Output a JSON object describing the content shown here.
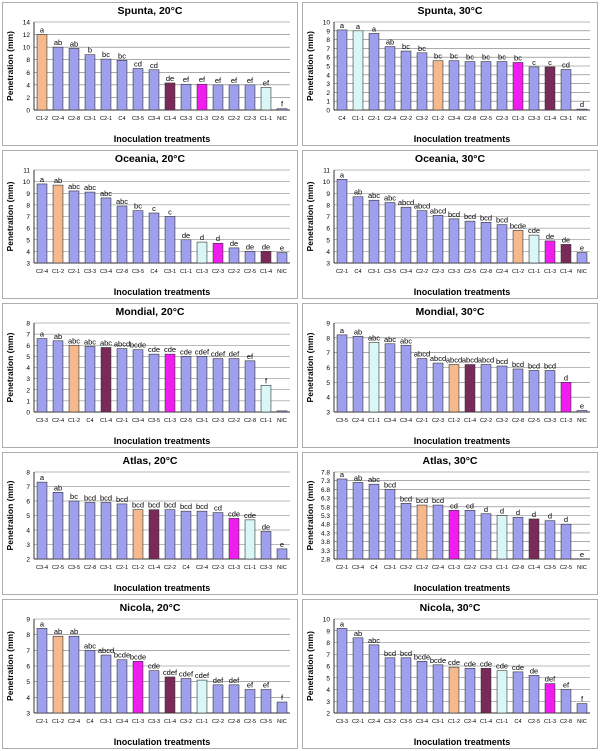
{
  "chart_data": [
    {
      "type": "bar",
      "title": "Spunta, 20°C",
      "xlabel": "Inoculation treatments",
      "ylabel": "Penetration (mm)",
      "ylim": [
        0,
        14
      ],
      "yticks": [
        0,
        2,
        4,
        6,
        8,
        10,
        12,
        14
      ],
      "categories": [
        "C1-2",
        "C2-4",
        "C2-8",
        "C3-1",
        "C2-1",
        "C4",
        "C3-5",
        "C3-4",
        "C1-4",
        "C3-3",
        "C1-3",
        "C2-5",
        "C2-2",
        "C2-3",
        "C1-1",
        "NIC"
      ],
      "values": [
        12,
        10,
        9.8,
        8.8,
        8.1,
        7.9,
        6.6,
        6.4,
        4.3,
        4.1,
        4.1,
        4.0,
        4.0,
        4.0,
        3.6,
        0.2
      ],
      "letters": [
        "a",
        "ab",
        "ab",
        "b",
        "bc",
        "bc",
        "cd",
        "cd",
        "de",
        "ef",
        "ef",
        "ef",
        "ef",
        "ef",
        "ef",
        "f"
      ],
      "colors": [
        "#f6b98e",
        "#9f9ff0",
        "#9f9ff0",
        "#9f9ff0",
        "#9f9ff0",
        "#9f9ff0",
        "#9f9ff0",
        "#9f9ff0",
        "#7a2a58",
        "#9f9ff0",
        "#f01cf0",
        "#9f9ff0",
        "#9f9ff0",
        "#9f9ff0",
        "#d9f7f7",
        "#9f9ff0"
      ]
    },
    {
      "type": "bar",
      "title": "Spunta, 30°C",
      "xlabel": "Inoculation treatments",
      "ylabel": "Penetration (mm)",
      "ylim": [
        0,
        10
      ],
      "yticks": [
        0,
        1,
        2,
        3,
        4,
        5,
        6,
        7,
        8,
        9,
        10
      ],
      "categories": [
        "C4",
        "C1-1",
        "C2-1",
        "C2-4",
        "C2-2",
        "C3-2",
        "C1-2",
        "C3-4",
        "C2-8",
        "C2-5",
        "C2-3",
        "C1-3",
        "C3-3",
        "C1-4",
        "C3-1",
        "NIC"
      ],
      "values": [
        9.1,
        9.0,
        8.7,
        7.2,
        6.7,
        6.5,
        5.6,
        5.6,
        5.5,
        5.5,
        5.5,
        5.4,
        4.9,
        4.9,
        4.6,
        0.1
      ],
      "letters": [
        "a",
        "a",
        "a",
        "ab",
        "bc",
        "bc",
        "bc",
        "bc",
        "bc",
        "bc",
        "bc",
        "bc",
        "c",
        "c",
        "cd",
        "d"
      ],
      "colors": [
        "#9f9ff0",
        "#d9f7f7",
        "#9f9ff0",
        "#9f9ff0",
        "#9f9ff0",
        "#9f9ff0",
        "#f6b98e",
        "#9f9ff0",
        "#9f9ff0",
        "#9f9ff0",
        "#9f9ff0",
        "#f01cf0",
        "#9f9ff0",
        "#7a2a58",
        "#9f9ff0",
        "#9f9ff0"
      ]
    },
    {
      "type": "bar",
      "title": "Oceania, 20°C",
      "xlabel": "Inoculation treatments",
      "ylabel": "Penetration (mm)",
      "ylim": [
        3,
        11
      ],
      "yticks": [
        3,
        4,
        5,
        6,
        7,
        8,
        9,
        10,
        11
      ],
      "categories": [
        "C2-4",
        "C1-2",
        "C2-1",
        "C3-3",
        "C3-4",
        "C2-8",
        "C3-5",
        "C4",
        "C3-1",
        "C1-1",
        "C1-3",
        "C2-3",
        "C2-2",
        "C2-5",
        "C1-4",
        "NIC"
      ],
      "values": [
        9.8,
        9.7,
        9.2,
        9.1,
        8.6,
        7.9,
        7.5,
        7.3,
        7.0,
        5.0,
        4.8,
        4.7,
        4.3,
        4.0,
        4.0,
        3.9
      ],
      "letters": [
        "a",
        "ab",
        "abc",
        "abc",
        "abc",
        "abc",
        "bc",
        "c",
        "c",
        "de",
        "d",
        "d",
        "de",
        "de",
        "de",
        "e"
      ],
      "colors": [
        "#9f9ff0",
        "#f6b98e",
        "#9f9ff0",
        "#9f9ff0",
        "#9f9ff0",
        "#9f9ff0",
        "#9f9ff0",
        "#9f9ff0",
        "#9f9ff0",
        "#9f9ff0",
        "#d9f7f7",
        "#f01cf0",
        "#9f9ff0",
        "#9f9ff0",
        "#7a2a58",
        "#9f9ff0"
      ]
    },
    {
      "type": "bar",
      "title": "Oceania, 30°C",
      "xlabel": "Inoculation treatments",
      "ylabel": "Penetration (mm)",
      "ylim": [
        3,
        11
      ],
      "yticks": [
        3,
        4,
        5,
        6,
        7,
        8,
        9,
        10,
        11
      ],
      "categories": [
        "C2-1",
        "C4",
        "C3-1",
        "C3-5",
        "C3-4",
        "C2-2",
        "C2-3",
        "C3-3",
        "C2-5",
        "C2-8",
        "C2-4",
        "C1-2",
        "C1-1",
        "C1-3",
        "C1-4",
        "NIC"
      ],
      "values": [
        10.2,
        8.7,
        8.4,
        8.2,
        7.8,
        7.5,
        7.1,
        6.8,
        6.6,
        6.5,
        6.3,
        5.8,
        5.4,
        4.9,
        4.6,
        3.9
      ],
      "letters": [
        "a",
        "ab",
        "abc",
        "abc",
        "abcd",
        "abcd",
        "abcd",
        "bcd",
        "bcd",
        "bcd",
        "bcd",
        "bcde",
        "cde",
        "de",
        "de",
        "e"
      ],
      "colors": [
        "#9f9ff0",
        "#9f9ff0",
        "#9f9ff0",
        "#9f9ff0",
        "#9f9ff0",
        "#9f9ff0",
        "#9f9ff0",
        "#9f9ff0",
        "#9f9ff0",
        "#9f9ff0",
        "#9f9ff0",
        "#f6b98e",
        "#d9f7f7",
        "#f01cf0",
        "#7a2a58",
        "#9f9ff0"
      ]
    },
    {
      "type": "bar",
      "title": "Mondial, 20°C",
      "xlabel": "Inoculation treatments",
      "ylabel": "Penetration (mm)",
      "ylim": [
        0,
        8
      ],
      "yticks": [
        0,
        1,
        2,
        3,
        4,
        5,
        6,
        7,
        8
      ],
      "categories": [
        "C3-3",
        "C2-4",
        "C1-2",
        "C4",
        "C1-4",
        "C2-1",
        "C3-4",
        "C3-5",
        "C1-3",
        "C2-5",
        "C3-1",
        "C2-3",
        "C2-2",
        "C2-8",
        "C1-1",
        "NIC"
      ],
      "values": [
        6.6,
        6.4,
        6.0,
        5.9,
        5.8,
        5.7,
        5.6,
        5.2,
        5.2,
        5.0,
        5.0,
        4.8,
        4.8,
        4.6,
        2.4,
        0.1
      ],
      "letters": [
        "a",
        "ab",
        "abc",
        "abc",
        "abc",
        "abcd",
        "bcde",
        "cde",
        "cde",
        "cde",
        "cdef",
        "cdef",
        "def",
        "ef",
        "f",
        ""
      ],
      "colors": [
        "#9f9ff0",
        "#9f9ff0",
        "#f6b98e",
        "#9f9ff0",
        "#7a2a58",
        "#9f9ff0",
        "#9f9ff0",
        "#9f9ff0",
        "#f01cf0",
        "#9f9ff0",
        "#9f9ff0",
        "#9f9ff0",
        "#9f9ff0",
        "#9f9ff0",
        "#d9f7f7",
        "#9f9ff0"
      ]
    },
    {
      "type": "bar",
      "title": "Mondial, 30°C",
      "xlabel": "Inoculation treatments",
      "ylabel": "Penetration (mm)",
      "ylim": [
        3,
        9
      ],
      "yticks": [
        3,
        4,
        5,
        6,
        7,
        8,
        9
      ],
      "categories": [
        "C3-5",
        "C2-4",
        "C1-1",
        "C3-4",
        "C3-4",
        "C2-1",
        "C2-3",
        "C1-2",
        "C1-4",
        "C2-2",
        "C3-2",
        "C2-8",
        "C2-5",
        "C3-3",
        "C1-3",
        "NIC"
      ],
      "values": [
        8.2,
        8.1,
        7.7,
        7.6,
        7.5,
        6.6,
        6.3,
        6.2,
        6.2,
        6.2,
        6.1,
        5.9,
        5.8,
        5.8,
        5.0,
        3.1
      ],
      "letters": [
        "a",
        "ab",
        "abc",
        "abc",
        "abc",
        "abcd",
        "abcd",
        "abcd",
        "abcd",
        "abcd",
        "bcd",
        "bcd",
        "bcd",
        "bcd",
        "d",
        "e"
      ],
      "colors": [
        "#9f9ff0",
        "#9f9ff0",
        "#d9f7f7",
        "#9f9ff0",
        "#9f9ff0",
        "#9f9ff0",
        "#9f9ff0",
        "#f6b98e",
        "#7a2a58",
        "#9f9ff0",
        "#9f9ff0",
        "#9f9ff0",
        "#9f9ff0",
        "#9f9ff0",
        "#f01cf0",
        "#9f9ff0"
      ]
    },
    {
      "type": "bar",
      "title": "Atlas, 20°C",
      "xlabel": "Inoculation treatments",
      "ylabel": "Penetration (mm)",
      "ylim": [
        2,
        8
      ],
      "yticks": [
        2,
        3,
        4,
        5,
        6,
        7,
        8
      ],
      "categories": [
        "C3-4",
        "C2-5",
        "C3-5",
        "C2-8",
        "C3-1",
        "C2-1",
        "C1-2",
        "C1-4",
        "C2-2",
        "C4",
        "C2-4",
        "C2-3",
        "C1-3",
        "C1-1",
        "C3-3",
        "NIC"
      ],
      "values": [
        7.3,
        6.6,
        6.0,
        5.9,
        5.9,
        5.8,
        5.4,
        5.4,
        5.4,
        5.3,
        5.3,
        5.2,
        4.8,
        4.7,
        3.9,
        2.7
      ],
      "letters": [
        "a",
        "ab",
        "bc",
        "bcd",
        "bcd",
        "bcd",
        "bcd",
        "bcd",
        "bcd",
        "bcd",
        "bcd",
        "cd",
        "cde",
        "cde",
        "de",
        "e"
      ],
      "colors": [
        "#9f9ff0",
        "#9f9ff0",
        "#9f9ff0",
        "#9f9ff0",
        "#9f9ff0",
        "#9f9ff0",
        "#f6b98e",
        "#7a2a58",
        "#9f9ff0",
        "#9f9ff0",
        "#9f9ff0",
        "#9f9ff0",
        "#f01cf0",
        "#d9f7f7",
        "#9f9ff0",
        "#9f9ff0"
      ]
    },
    {
      "type": "bar",
      "title": "Atlas, 30°C",
      "xlabel": "Inoculation treatments",
      "ylabel": "Penetration (mm)",
      "ylim": [
        2.8,
        7.8
      ],
      "yticks": [
        2.8,
        3.3,
        3.8,
        4.3,
        4.8,
        5.3,
        5.8,
        6.3,
        6.8,
        7.3,
        7.8
      ],
      "categories": [
        "C2-1",
        "C3-4",
        "C4",
        "C3-1",
        "C3-2",
        "C1-2",
        "C2-4",
        "C1-3",
        "C2-2",
        "C3-3",
        "C1-1",
        "C2-8",
        "C1-4",
        "C3-5",
        "C2-5",
        "NIC"
      ],
      "values": [
        7.4,
        7.2,
        7.1,
        6.8,
        6.0,
        5.9,
        5.9,
        5.6,
        5.6,
        5.4,
        5.3,
        5.2,
        5.1,
        5.0,
        4.8,
        2.8
      ],
      "letters": [
        "a",
        "ab",
        "abc",
        "bcd",
        "bcd",
        "bcd",
        "bcd",
        "cd",
        "cd",
        "d",
        "d",
        "d",
        "d",
        "d",
        "d",
        "e"
      ],
      "colors": [
        "#9f9ff0",
        "#9f9ff0",
        "#9f9ff0",
        "#9f9ff0",
        "#9f9ff0",
        "#f6b98e",
        "#9f9ff0",
        "#f01cf0",
        "#9f9ff0",
        "#9f9ff0",
        "#d9f7f7",
        "#9f9ff0",
        "#7a2a58",
        "#9f9ff0",
        "#9f9ff0",
        "#9f9ff0"
      ]
    },
    {
      "type": "bar",
      "title": "Nicola, 20°C",
      "xlabel": "Inoculation treatments",
      "ylabel": "Penetration (mm)",
      "ylim": [
        3,
        9
      ],
      "yticks": [
        3,
        4,
        5,
        6,
        7,
        8,
        9
      ],
      "categories": [
        "C2-1",
        "C1-2",
        "C2-4",
        "C4",
        "C3-1",
        "C3-4",
        "C1-3",
        "C3-3",
        "C1-4",
        "C3-2",
        "C1-1",
        "C2-2",
        "C2-8",
        "C2-5",
        "C3-5",
        "NIC"
      ],
      "values": [
        8.4,
        7.9,
        7.9,
        7.0,
        6.7,
        6.4,
        6.3,
        5.7,
        5.3,
        5.2,
        5.1,
        4.8,
        4.8,
        4.5,
        4.5,
        3.7
      ],
      "letters": [
        "a",
        "ab",
        "ab",
        "abc",
        "abcd",
        "bcde",
        "bcde",
        "cde",
        "cdef",
        "cdef",
        "cdef",
        "def",
        "def",
        "ef",
        "ef",
        "f"
      ],
      "colors": [
        "#9f9ff0",
        "#f6b98e",
        "#9f9ff0",
        "#9f9ff0",
        "#9f9ff0",
        "#9f9ff0",
        "#f01cf0",
        "#9f9ff0",
        "#7a2a58",
        "#9f9ff0",
        "#d9f7f7",
        "#9f9ff0",
        "#9f9ff0",
        "#9f9ff0",
        "#9f9ff0",
        "#9f9ff0"
      ]
    },
    {
      "type": "bar",
      "title": "Nicola, 30°C",
      "xlabel": "Inoculation treatments",
      "ylabel": "Penetration (mm)",
      "ylim": [
        2,
        10
      ],
      "yticks": [
        2,
        3,
        4,
        5,
        6,
        7,
        8,
        9,
        10
      ],
      "categories": [
        "C3-3",
        "C2-1",
        "C2-4",
        "C3-2",
        "C3-5",
        "C3-4",
        "C3-1",
        "C1-2",
        "C2-4",
        "C1-4",
        "C1-1",
        "C4",
        "C2-5",
        "C1-3",
        "C2-8",
        "NIC"
      ],
      "values": [
        9.2,
        8.4,
        7.8,
        6.7,
        6.7,
        6.4,
        6.1,
        5.9,
        5.8,
        5.8,
        5.6,
        5.5,
        5.2,
        4.5,
        4.0,
        2.8
      ],
      "letters": [
        "a",
        "ab",
        "abc",
        "bcd",
        "bcd",
        "bcde",
        "bcde",
        "cde",
        "cde",
        "cde",
        "cde",
        "cde",
        "de",
        "def",
        "ef",
        "f"
      ],
      "colors": [
        "#9f9ff0",
        "#9f9ff0",
        "#9f9ff0",
        "#9f9ff0",
        "#9f9ff0",
        "#9f9ff0",
        "#9f9ff0",
        "#f6b98e",
        "#9f9ff0",
        "#7a2a58",
        "#d9f7f7",
        "#9f9ff0",
        "#9f9ff0",
        "#f01cf0",
        "#9f9ff0",
        "#9f9ff0"
      ]
    }
  ]
}
